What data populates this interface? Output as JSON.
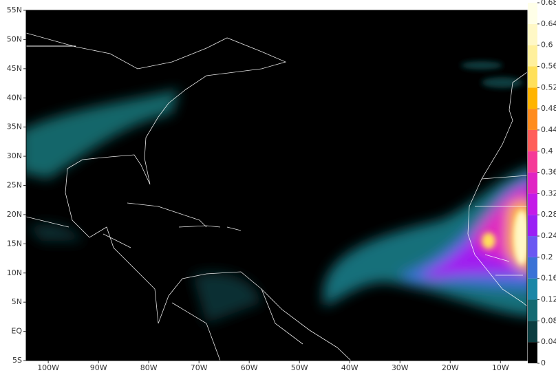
{
  "map": {
    "lat_range": [
      -5,
      55
    ],
    "lon_range": [
      -104.4,
      -4.7
    ],
    "lat_ticks": [
      {
        "value": 55,
        "label": "55N"
      },
      {
        "value": 50,
        "label": "50N"
      },
      {
        "value": 45,
        "label": "45N"
      },
      {
        "value": 40,
        "label": "40N"
      },
      {
        "value": 35,
        "label": "35N"
      },
      {
        "value": 30,
        "label": "30N"
      },
      {
        "value": 25,
        "label": "25N"
      },
      {
        "value": 20,
        "label": "20N"
      },
      {
        "value": 15,
        "label": "15N"
      },
      {
        "value": 10,
        "label": "10N"
      },
      {
        "value": 5,
        "label": "5N"
      },
      {
        "value": 0,
        "label": "EQ"
      },
      {
        "value": -5,
        "label": "5S"
      }
    ],
    "lon_ticks": [
      {
        "value": -100,
        "label": "100W"
      },
      {
        "value": -90,
        "label": "90W"
      },
      {
        "value": -80,
        "label": "80W"
      },
      {
        "value": -70,
        "label": "70W"
      },
      {
        "value": -60,
        "label": "60W"
      },
      {
        "value": -50,
        "label": "50W"
      },
      {
        "value": -40,
        "label": "40W"
      },
      {
        "value": -30,
        "label": "30W"
      },
      {
        "value": -20,
        "label": "20W"
      },
      {
        "value": -10,
        "label": "10W"
      }
    ],
    "colorbar": {
      "range": [
        0,
        0.68
      ],
      "ticks": [
        0,
        0.04,
        0.08,
        0.12,
        0.16,
        0.2,
        0.24,
        0.28,
        0.32,
        0.36,
        0.4,
        0.44,
        0.48,
        0.52,
        0.56,
        0.6,
        0.64,
        0.68
      ],
      "colors": [
        "#000000",
        "#0b3d40",
        "#136a72",
        "#1a86a6",
        "#3a72d6",
        "#6a58f2",
        "#9a20f5",
        "#c41ae8",
        "#e024c4",
        "#f53a98",
        "#ff5e5a",
        "#ff8c1e",
        "#ffb400",
        "#ffe05a",
        "#fff09c",
        "#fff8c6",
        "#ffffe8"
      ]
    }
  }
}
